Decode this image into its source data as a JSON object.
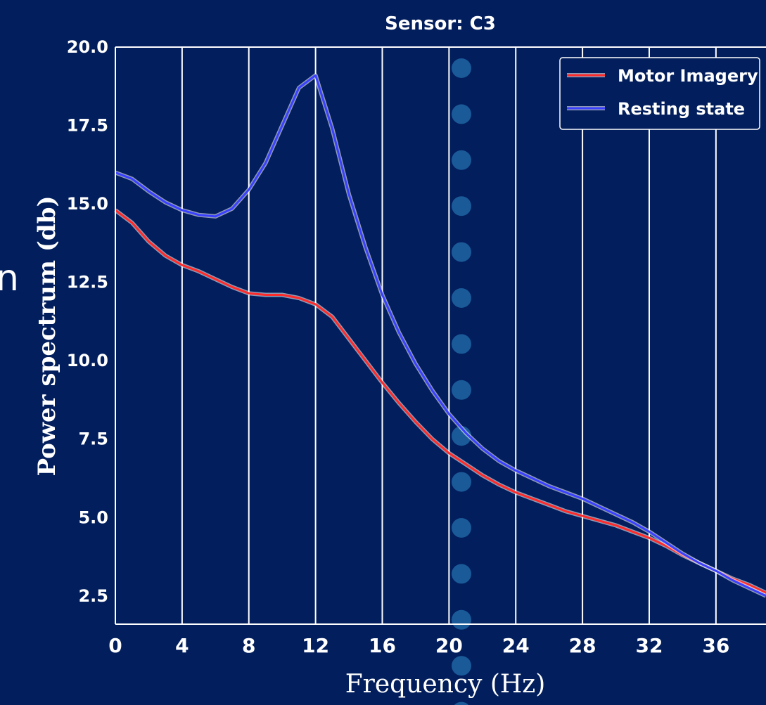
{
  "stray_text": "n",
  "chart_data": {
    "type": "line",
    "title": "Sensor: C3",
    "xlabel": "Frequency (Hz)",
    "ylabel": "Power spectrum (db)",
    "xlim": [
      0,
      39
    ],
    "ylim": [
      1.6,
      20.0
    ],
    "xticks": [
      0,
      4,
      8,
      12,
      16,
      20,
      24,
      28,
      32,
      36
    ],
    "yticks": [
      2.5,
      5.0,
      7.5,
      10.0,
      12.5,
      15.0,
      17.5,
      20.0
    ],
    "ytick_labels": [
      "2.5",
      "5.0",
      "7.5",
      "10.0",
      "12.5",
      "15.0",
      "17.5",
      "20.0"
    ],
    "grid": "vertical",
    "legend_position": "top-right",
    "colors": {
      "background": "#021e5c",
      "motor": "#ff2a2a",
      "resting": "#3a40ff",
      "grid": "#ffffff",
      "dots": "#1a5a99"
    },
    "series": [
      {
        "name": "Motor Imagery",
        "x": [
          0,
          1,
          2,
          3,
          4,
          5,
          6,
          7,
          8,
          9,
          10,
          11,
          12,
          13,
          14,
          15,
          16,
          17,
          18,
          19,
          20,
          21,
          22,
          23,
          24,
          25,
          26,
          27,
          28,
          29,
          30,
          31,
          32,
          33,
          34,
          35,
          36,
          37,
          38,
          39
        ],
        "y": [
          14.8,
          14.4,
          13.8,
          13.35,
          13.05,
          12.85,
          12.6,
          12.35,
          12.15,
          12.1,
          12.1,
          12.0,
          11.8,
          11.4,
          10.7,
          10.0,
          9.3,
          8.65,
          8.05,
          7.5,
          7.05,
          6.7,
          6.35,
          6.05,
          5.8,
          5.6,
          5.4,
          5.2,
          5.05,
          4.9,
          4.75,
          4.55,
          4.35,
          4.1,
          3.8,
          3.55,
          3.3,
          3.05,
          2.85,
          2.6
        ]
      },
      {
        "name": "Resting state",
        "x": [
          0,
          1,
          2,
          3,
          4,
          5,
          6,
          7,
          8,
          9,
          10,
          11,
          12,
          13,
          14,
          15,
          16,
          17,
          18,
          19,
          20,
          21,
          22,
          23,
          24,
          25,
          26,
          27,
          28,
          29,
          30,
          31,
          32,
          33,
          34,
          35,
          36,
          37,
          38,
          39
        ],
        "y": [
          16.0,
          15.8,
          15.4,
          15.05,
          14.8,
          14.65,
          14.6,
          14.85,
          15.45,
          16.3,
          17.5,
          18.7,
          19.1,
          17.4,
          15.3,
          13.6,
          12.1,
          10.9,
          9.9,
          9.05,
          8.3,
          7.7,
          7.2,
          6.8,
          6.5,
          6.25,
          6.0,
          5.8,
          5.6,
          5.35,
          5.1,
          4.85,
          4.55,
          4.2,
          3.85,
          3.55,
          3.3,
          3.0,
          2.75,
          2.5
        ]
      }
    ]
  }
}
